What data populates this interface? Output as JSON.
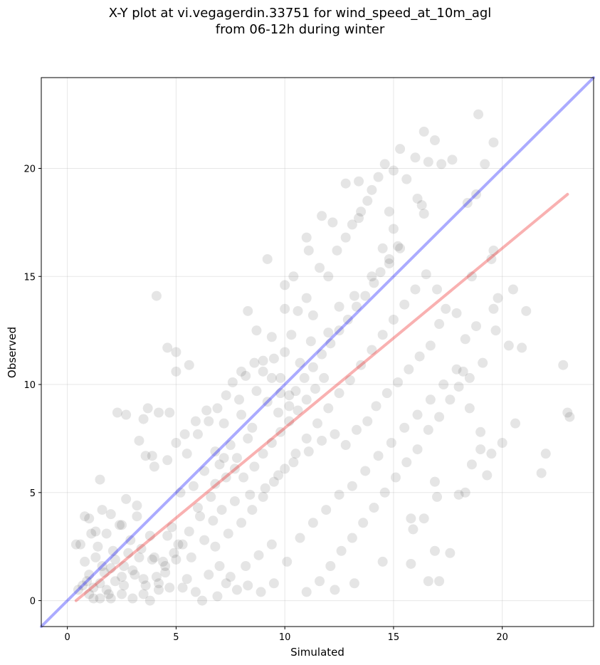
{
  "title_line1": "X-Y plot at vi.vegagerdin.33751 for wind_speed_at_10m_agl",
  "title_line2": "from 06-12h during winter",
  "colors": {
    "points": "#000000",
    "identity_line": "#0000ff",
    "regression_line": "#ee1111",
    "grid": "#b0b0b0"
  },
  "chart_data": {
    "type": "scatter",
    "title": "X-Y plot at vi.vegagerdin.33751 for wind_speed_at_10m_agl from 06-12h during winter",
    "xlabel": "Simulated",
    "ylabel": "Observed",
    "xlim": [
      -1.2,
      24.2
    ],
    "ylim": [
      -1.2,
      24.2
    ],
    "xticks": [
      0,
      5,
      10,
      15,
      20
    ],
    "yticks": [
      0,
      5,
      10,
      15,
      20
    ],
    "grid": true,
    "point_alpha": 0.1,
    "lines": [
      {
        "kind": "identity",
        "x": [
          -1.2,
          24.2
        ],
        "y": [
          -1.2,
          24.2
        ]
      },
      {
        "kind": "regression",
        "x": [
          0.4,
          23.0
        ],
        "y": [
          0.0,
          18.8
        ]
      }
    ],
    "points": [
      [
        1.0,
        1.2
      ],
      [
        1.5,
        0.8
      ],
      [
        1.8,
        0.5
      ],
      [
        2.0,
        1.5
      ],
      [
        2.2,
        0.9
      ],
      [
        1.3,
        2.0
      ],
      [
        0.8,
        1.8
      ],
      [
        2.5,
        1.1
      ],
      [
        3.0,
        1.4
      ],
      [
        1.2,
        0.6
      ],
      [
        1.7,
        1.3
      ],
      [
        2.1,
        2.3
      ],
      [
        0.9,
        0.9
      ],
      [
        1.4,
        2.5
      ],
      [
        2.6,
        0.7
      ],
      [
        3.3,
        2.0
      ],
      [
        1.1,
        3.1
      ],
      [
        2.4,
        3.5
      ],
      [
        0.6,
        2.6
      ],
      [
        1.9,
        0.3
      ],
      [
        2.8,
        2.2
      ],
      [
        3.5,
        1.0
      ],
      [
        4.0,
        2.0
      ],
      [
        4.5,
        1.3
      ],
      [
        3.8,
        3.0
      ],
      [
        4.2,
        0.8
      ],
      [
        5.0,
        1.9
      ],
      [
        5.5,
        1.0
      ],
      [
        4.8,
        3.4
      ],
      [
        3.2,
        4.4
      ],
      [
        2.0,
        4.0
      ],
      [
        2.7,
        4.7
      ],
      [
        1.5,
        5.6
      ],
      [
        2.3,
        8.7
      ],
      [
        2.7,
        8.6
      ],
      [
        3.7,
        8.9
      ],
      [
        4.2,
        8.7
      ],
      [
        4.7,
        8.7
      ],
      [
        3.5,
        8.4
      ],
      [
        3.3,
        7.4
      ],
      [
        3.6,
        6.7
      ],
      [
        4.0,
        6.2
      ],
      [
        4.6,
        6.5
      ],
      [
        5.0,
        7.3
      ],
      [
        5.5,
        6.8
      ],
      [
        6.0,
        7.7
      ],
      [
        6.5,
        8.3
      ],
      [
        6.3,
        6.0
      ],
      [
        5.8,
        5.3
      ],
      [
        5.2,
        5.0
      ],
      [
        6.0,
        4.3
      ],
      [
        6.8,
        5.4
      ],
      [
        7.0,
        6.3
      ],
      [
        7.5,
        7.2
      ],
      [
        7.2,
        8.2
      ],
      [
        8.0,
        8.6
      ],
      [
        8.3,
        7.5
      ],
      [
        8.7,
        9.7
      ],
      [
        9.0,
        10.6
      ],
      [
        9.5,
        11.2
      ],
      [
        9.8,
        10.3
      ],
      [
        10.0,
        11.5
      ],
      [
        10.3,
        12.3
      ],
      [
        10.6,
        13.4
      ],
      [
        11.0,
        14.0
      ],
      [
        11.3,
        13.2
      ],
      [
        11.6,
        15.4
      ],
      [
        12.0,
        15.0
      ],
      [
        12.4,
        16.2
      ],
      [
        12.8,
        16.8
      ],
      [
        13.1,
        17.4
      ],
      [
        13.5,
        18.0
      ],
      [
        13.8,
        18.5
      ],
      [
        14.0,
        19.0
      ],
      [
        14.3,
        19.6
      ],
      [
        14.6,
        20.2
      ],
      [
        13.4,
        19.4
      ],
      [
        14.8,
        18.0
      ],
      [
        15.0,
        17.2
      ],
      [
        15.3,
        16.3
      ],
      [
        15.6,
        19.5
      ],
      [
        16.1,
        18.6
      ],
      [
        16.4,
        17.9
      ],
      [
        16.0,
        20.5
      ],
      [
        16.4,
        21.7
      ],
      [
        16.9,
        21.3
      ],
      [
        17.2,
        20.2
      ],
      [
        17.7,
        20.4
      ],
      [
        16.6,
        20.3
      ],
      [
        15.0,
        19.9
      ],
      [
        14.8,
        15.6
      ],
      [
        14.0,
        15.0
      ],
      [
        13.2,
        14.1
      ],
      [
        12.5,
        13.6
      ],
      [
        12.0,
        12.4
      ],
      [
        11.2,
        12.0
      ],
      [
        10.7,
        11.0
      ],
      [
        10.2,
        9.5
      ],
      [
        9.7,
        8.7
      ],
      [
        9.2,
        9.2
      ],
      [
        8.5,
        8.0
      ],
      [
        7.8,
        6.6
      ],
      [
        7.3,
        5.7
      ],
      [
        6.6,
        4.8
      ],
      [
        6.1,
        3.9
      ],
      [
        5.6,
        3.2
      ],
      [
        5.3,
        2.6
      ],
      [
        4.9,
        2.2
      ],
      [
        4.4,
        1.8
      ],
      [
        6.8,
        2.5
      ],
      [
        7.4,
        3.1
      ],
      [
        8.0,
        3.6
      ],
      [
        8.5,
        4.2
      ],
      [
        9.0,
        4.8
      ],
      [
        9.5,
        5.5
      ],
      [
        10.0,
        6.1
      ],
      [
        10.5,
        6.8
      ],
      [
        11.0,
        7.5
      ],
      [
        11.5,
        8.2
      ],
      [
        12.0,
        8.9
      ],
      [
        12.5,
        9.6
      ],
      [
        13.0,
        10.2
      ],
      [
        13.5,
        10.9
      ],
      [
        14.0,
        11.6
      ],
      [
        14.5,
        12.3
      ],
      [
        15.0,
        13.0
      ],
      [
        15.5,
        13.7
      ],
      [
        16.0,
        14.4
      ],
      [
        16.5,
        15.1
      ],
      [
        17.0,
        14.4
      ],
      [
        7.5,
        1.1
      ],
      [
        8.2,
        1.6
      ],
      [
        8.8,
        2.1
      ],
      [
        9.4,
        2.6
      ],
      [
        10.1,
        1.8
      ],
      [
        10.7,
        2.9
      ],
      [
        11.3,
        3.6
      ],
      [
        11.9,
        4.2
      ],
      [
        12.5,
        4.9
      ],
      [
        13.1,
        5.3
      ],
      [
        13.7,
        6.0
      ],
      [
        14.3,
        6.7
      ],
      [
        14.9,
        7.3
      ],
      [
        15.5,
        8.0
      ],
      [
        16.1,
        8.6
      ],
      [
        16.7,
        9.3
      ],
      [
        17.3,
        10.0
      ],
      [
        17.9,
        10.7
      ],
      [
        18.5,
        10.3
      ],
      [
        19.1,
        11.0
      ],
      [
        19.7,
        12.5
      ],
      [
        20.3,
        11.8
      ],
      [
        20.9,
        11.7
      ],
      [
        21.1,
        13.4
      ],
      [
        21.8,
        5.9
      ],
      [
        22.0,
        6.8
      ],
      [
        22.8,
        10.9
      ],
      [
        23.0,
        8.7
      ],
      [
        23.1,
        8.5
      ],
      [
        20.6,
        8.2
      ],
      [
        20.0,
        7.3
      ],
      [
        19.5,
        6.8
      ],
      [
        19.0,
        7.8
      ],
      [
        18.5,
        8.9
      ],
      [
        18.0,
        9.9
      ],
      [
        18.3,
        12.1
      ],
      [
        18.8,
        12.7
      ],
      [
        19.6,
        13.5
      ],
      [
        20.5,
        14.4
      ],
      [
        19.8,
        14.0
      ],
      [
        17.4,
        13.5
      ],
      [
        17.9,
        13.3
      ],
      [
        18.2,
        10.6
      ],
      [
        17.6,
        9.3
      ],
      [
        17.1,
        8.5
      ],
      [
        16.6,
        7.9
      ],
      [
        16.1,
        7.0
      ],
      [
        15.6,
        6.4
      ],
      [
        15.1,
        5.7
      ],
      [
        14.6,
        5.0
      ],
      [
        14.1,
        4.3
      ],
      [
        13.6,
        3.6
      ],
      [
        13.1,
        2.9
      ],
      [
        12.6,
        2.3
      ],
      [
        12.1,
        1.6
      ],
      [
        11.6,
        0.9
      ],
      [
        11.0,
        0.4
      ],
      [
        12.3,
        0.5
      ],
      [
        13.2,
        0.8
      ],
      [
        14.5,
        1.8
      ],
      [
        15.8,
        1.7
      ],
      [
        16.6,
        0.9
      ],
      [
        17.1,
        0.9
      ],
      [
        16.9,
        2.3
      ],
      [
        17.6,
        2.2
      ],
      [
        16.4,
        3.8
      ],
      [
        15.8,
        3.8
      ],
      [
        15.9,
        3.3
      ],
      [
        17.0,
        4.8
      ],
      [
        16.9,
        5.5
      ],
      [
        18.0,
        4.9
      ],
      [
        18.3,
        5.0
      ],
      [
        18.6,
        6.3
      ],
      [
        19.3,
        5.8
      ],
      [
        19.0,
        7.0
      ],
      [
        18.8,
        18.8
      ],
      [
        19.2,
        20.2
      ],
      [
        18.9,
        22.5
      ],
      [
        19.6,
        21.2
      ],
      [
        18.4,
        18.4
      ],
      [
        19.5,
        15.8
      ],
      [
        19.6,
        16.2
      ],
      [
        18.6,
        15.0
      ],
      [
        17.1,
        12.8
      ],
      [
        14.5,
        16.3
      ],
      [
        12.8,
        19.3
      ],
      [
        11.0,
        16.8
      ],
      [
        10.4,
        15.0
      ],
      [
        9.2,
        15.8
      ],
      [
        8.3,
        13.4
      ],
      [
        8.7,
        12.5
      ],
      [
        9.4,
        12.2
      ],
      [
        10.0,
        13.5
      ],
      [
        10.0,
        14.6
      ],
      [
        11.1,
        16.2
      ],
      [
        11.7,
        17.8
      ],
      [
        12.2,
        17.5
      ],
      [
        13.4,
        17.7
      ],
      [
        15.3,
        20.9
      ],
      [
        16.3,
        18.3
      ],
      [
        4.1,
        14.1
      ],
      [
        4.6,
        11.7
      ],
      [
        5.0,
        11.5
      ],
      [
        5.0,
        10.6
      ],
      [
        5.6,
        10.9
      ],
      [
        3.9,
        6.7
      ],
      [
        3.2,
        3.9
      ],
      [
        2.5,
        3.5
      ],
      [
        0.4,
        2.6
      ],
      [
        0.8,
        3.9
      ],
      [
        1.0,
        3.8
      ],
      [
        1.3,
        3.2
      ],
      [
        1.6,
        4.2
      ],
      [
        1.8,
        3.1
      ],
      [
        0.7,
        0.7
      ],
      [
        0.5,
        0.5
      ],
      [
        1.0,
        0.3
      ],
      [
        1.2,
        0.1
      ],
      [
        1.5,
        0.1
      ],
      [
        2.0,
        0.1
      ],
      [
        2.5,
        0.3
      ],
      [
        3.0,
        0.1
      ],
      [
        3.5,
        0.3
      ],
      [
        3.8,
        0.0
      ],
      [
        4.2,
        0.5
      ],
      [
        4.7,
        0.6
      ],
      [
        5.3,
        0.6
      ],
      [
        5.9,
        0.4
      ],
      [
        6.2,
        0.0
      ],
      [
        6.9,
        0.2
      ],
      [
        7.3,
        0.8
      ],
      [
        7.8,
        0.5
      ],
      [
        8.3,
        0.7
      ],
      [
        8.9,
        0.4
      ],
      [
        9.5,
        0.8
      ],
      [
        7.0,
        1.6
      ],
      [
        6.5,
        1.2
      ],
      [
        5.7,
        2.0
      ],
      [
        5.1,
        2.6
      ],
      [
        4.6,
        3.0
      ],
      [
        6.3,
        2.8
      ],
      [
        6.7,
        3.7
      ],
      [
        7.1,
        4.2
      ],
      [
        7.7,
        4.6
      ],
      [
        8.4,
        4.9
      ],
      [
        9.1,
        5.2
      ],
      [
        9.7,
        5.8
      ],
      [
        10.4,
        6.4
      ],
      [
        11.1,
        6.9
      ],
      [
        11.7,
        7.4
      ],
      [
        12.3,
        7.7
      ],
      [
        12.8,
        7.2
      ],
      [
        13.3,
        7.9
      ],
      [
        13.8,
        8.3
      ],
      [
        14.2,
        9.0
      ],
      [
        14.7,
        9.6
      ],
      [
        15.2,
        10.1
      ],
      [
        15.7,
        10.7
      ],
      [
        16.2,
        11.3
      ],
      [
        16.7,
        11.8
      ],
      [
        7.9,
        9.3
      ],
      [
        8.2,
        10.4
      ],
      [
        8.6,
        11.0
      ],
      [
        9.0,
        11.1
      ],
      [
        9.4,
        10.3
      ],
      [
        9.8,
        9.6
      ],
      [
        10.2,
        9.0
      ],
      [
        10.5,
        9.7
      ],
      [
        10.9,
        10.3
      ],
      [
        11.3,
        10.8
      ],
      [
        11.7,
        11.4
      ],
      [
        12.1,
        11.9
      ],
      [
        12.5,
        12.5
      ],
      [
        12.9,
        13.0
      ],
      [
        13.3,
        13.6
      ],
      [
        13.7,
        14.1
      ],
      [
        14.1,
        14.7
      ],
      [
        14.4,
        15.2
      ],
      [
        14.8,
        15.8
      ],
      [
        15.2,
        16.4
      ],
      [
        6.9,
        8.9
      ],
      [
        7.3,
        9.5
      ],
      [
        7.6,
        10.1
      ],
      [
        8.0,
        10.6
      ],
      [
        5.4,
        7.7
      ],
      [
        5.9,
        8.3
      ],
      [
        6.4,
        8.8
      ],
      [
        6.8,
        6.9
      ],
      [
        7.2,
        6.6
      ],
      [
        7.7,
        6.1
      ],
      [
        8.1,
        5.7
      ],
      [
        8.6,
        6.2
      ],
      [
        9.0,
        6.8
      ],
      [
        9.4,
        7.3
      ],
      [
        9.8,
        7.8
      ],
      [
        10.2,
        8.3
      ],
      [
        10.6,
        8.8
      ],
      [
        11.0,
        9.3
      ],
      [
        11.4,
        9.8
      ],
      [
        11.8,
        10.3
      ],
      [
        2.9,
        2.8
      ],
      [
        3.4,
        2.4
      ],
      [
        3.9,
        1.9
      ],
      [
        1.6,
        1.6
      ],
      [
        2.2,
        1.9
      ],
      [
        2.6,
        1.6
      ],
      [
        3.1,
        1.2
      ],
      [
        3.6,
        0.7
      ],
      [
        4.1,
        1.1
      ],
      [
        4.5,
        1.6
      ]
    ]
  }
}
